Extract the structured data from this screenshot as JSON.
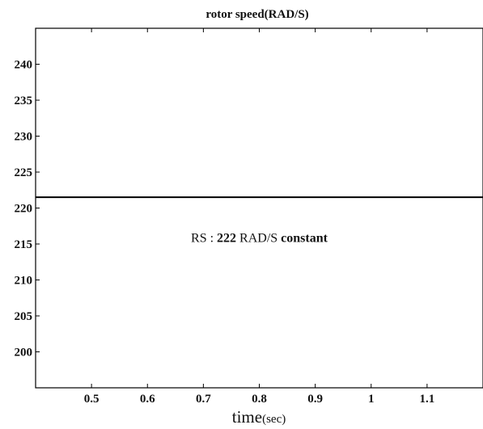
{
  "chart_data": {
    "type": "line",
    "title": "rotor speed(RAD/S)",
    "xlabel": "time",
    "xlabel_unit": "(sec)",
    "ylabel": "",
    "xlim": [
      0.4,
      1.2
    ],
    "ylim": [
      195,
      245
    ],
    "x_ticks": [
      0.5,
      0.6,
      0.7,
      0.8,
      0.9,
      1,
      1.1
    ],
    "x_tick_labels": [
      "0.5",
      "0.6",
      "0.7",
      "0.8",
      "0.9",
      "1",
      "1.1"
    ],
    "y_ticks": [
      200,
      205,
      210,
      215,
      220,
      225,
      230,
      235,
      240
    ],
    "y_tick_labels": [
      "200",
      "205",
      "210",
      "215",
      "220",
      "225",
      "230",
      "235",
      "240"
    ],
    "series": [
      {
        "x": [
          0.4,
          1.2
        ],
        "y": [
          221.5,
          221.5
        ],
        "color": "#000000"
      }
    ],
    "annotation": {
      "prefix": "RS : ",
      "value": "222",
      "unit": " RAD/S ",
      "suffix": "constant",
      "x": 0.8,
      "y": 215.3
    },
    "grid": false
  }
}
